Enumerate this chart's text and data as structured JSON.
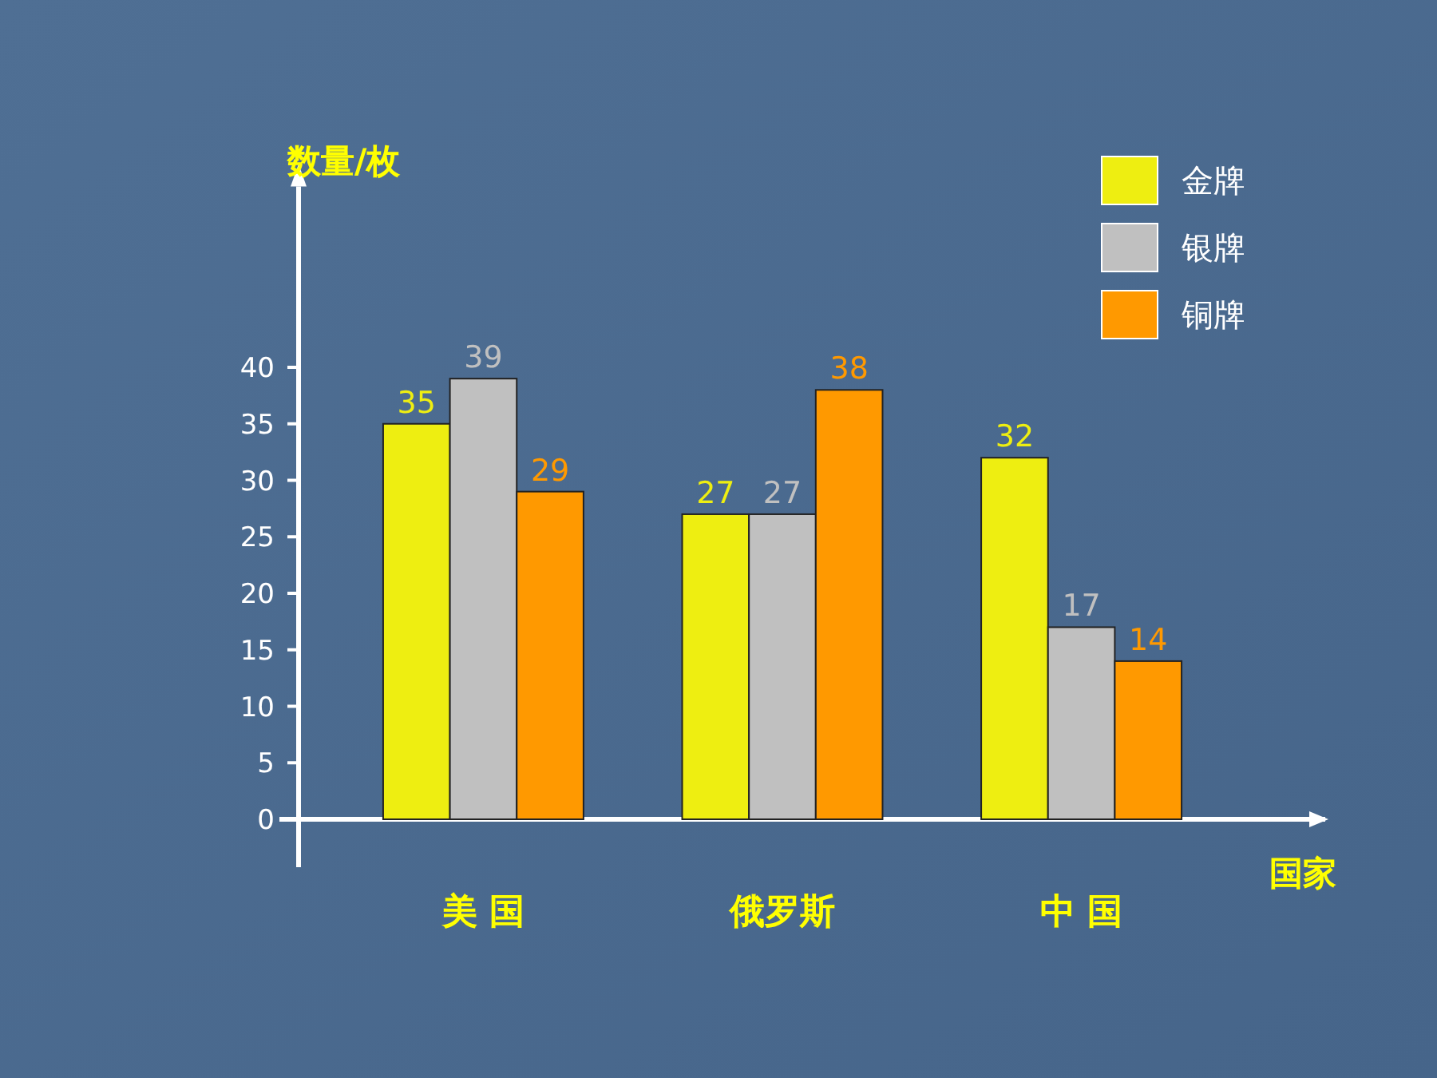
{
  "chart_data": {
    "type": "bar",
    "xlabel": "国家",
    "ylabel": "数量/枚",
    "categories": [
      "美 国",
      "俄罗斯",
      "中 国"
    ],
    "series": [
      {
        "name": "金牌",
        "color": "#eeee11",
        "values": [
          35,
          27,
          32
        ]
      },
      {
        "name": "银牌",
        "color": "#c0c0c0",
        "values": [
          39,
          27,
          17
        ]
      },
      {
        "name": "铜牌",
        "color": "#ff9900",
        "values": [
          29,
          38,
          14
        ]
      }
    ],
    "ylim": [
      0,
      56
    ],
    "yticks": [
      0,
      5,
      10,
      15,
      20,
      25,
      30,
      35,
      40
    ],
    "data_labels": true,
    "legend": "top right",
    "grid": false
  }
}
